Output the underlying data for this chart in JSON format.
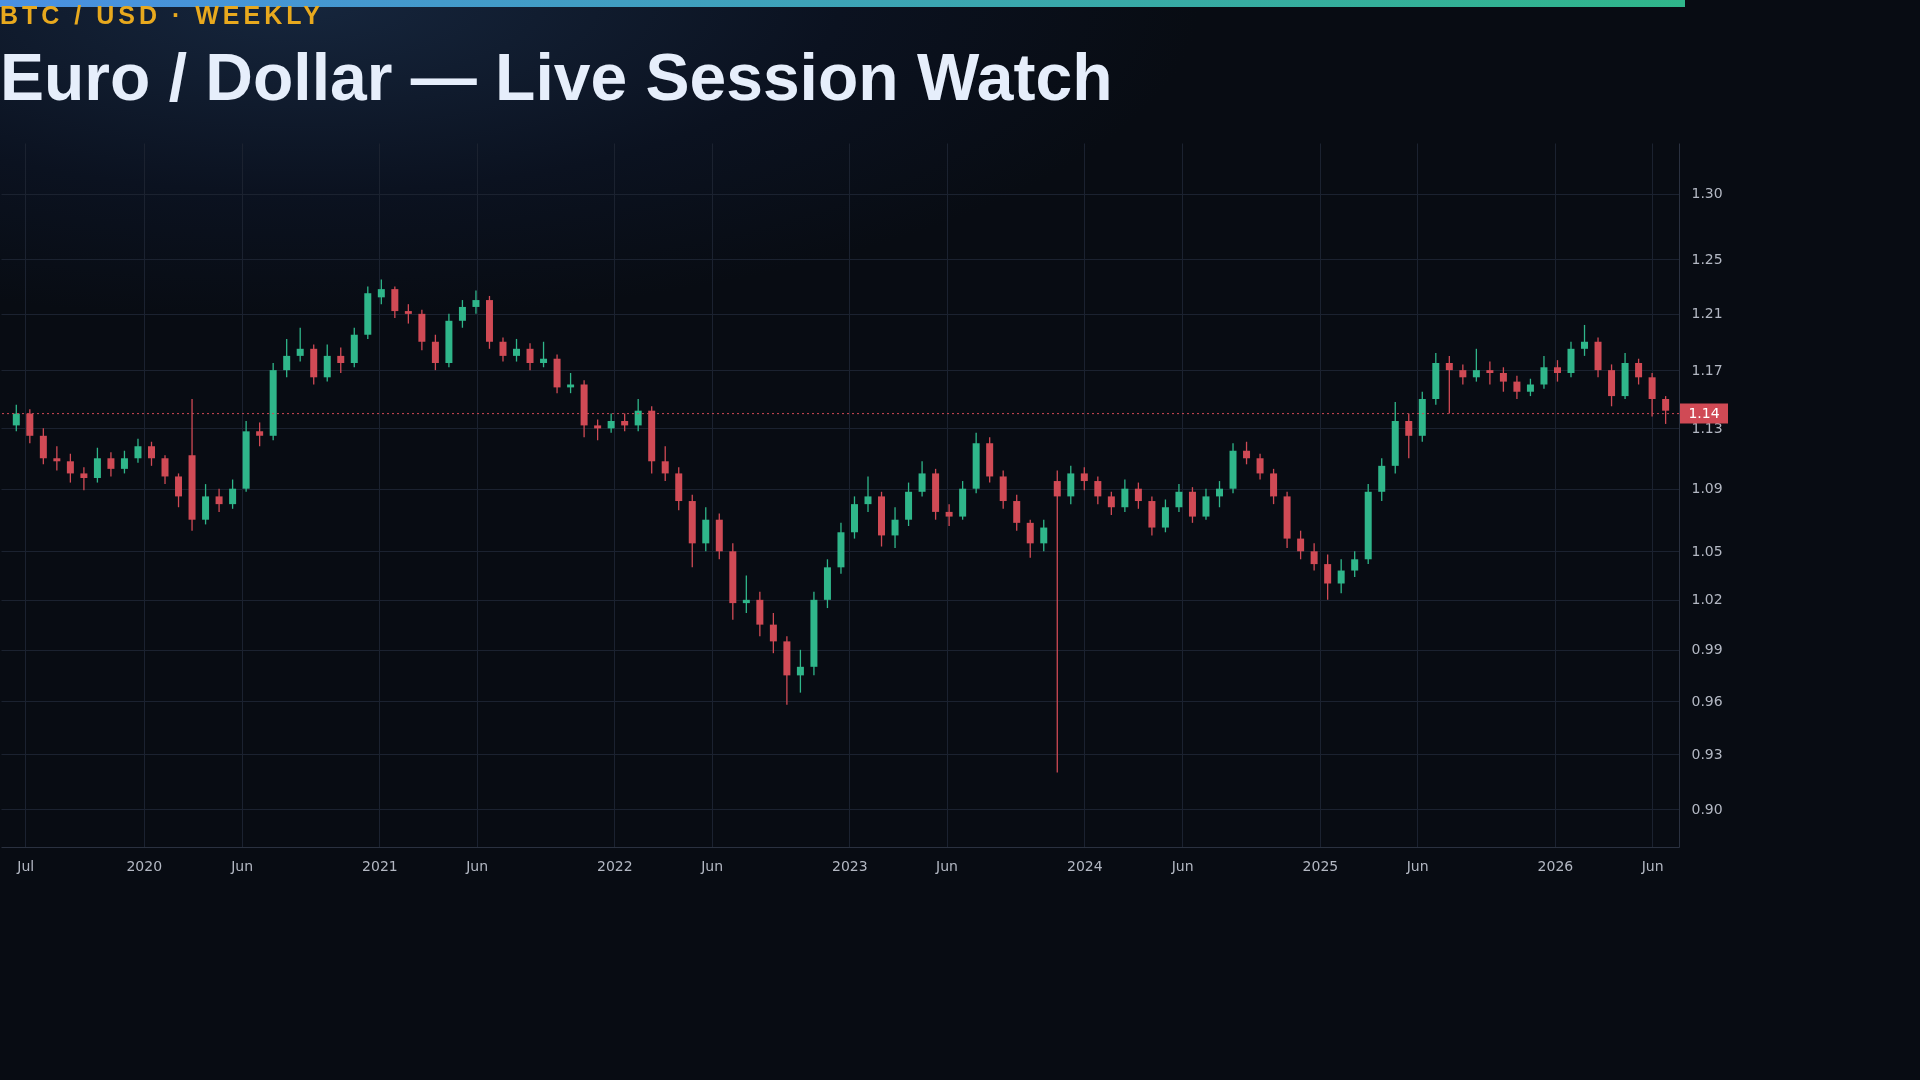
{
  "chart_data": {
    "type": "candlestick",
    "title": "Euro / Dollar — Live Session Watch",
    "subtitle": "BTC / USD · WEEKLY",
    "x": [
      "2019-06-17",
      "2019-07-08",
      "2019-07-29",
      "2019-08-19",
      "2019-09-09",
      "2019-09-30",
      "2019-10-21",
      "2019-11-11",
      "2019-12-02",
      "2019-12-23",
      "2020-01-13",
      "2020-02-03",
      "2020-02-24",
      "2020-03-16",
      "2020-04-06",
      "2020-04-27",
      "2020-05-18",
      "2020-06-08",
      "2020-06-29",
      "2020-07-20",
      "2020-08-10",
      "2020-08-31",
      "2020-09-21",
      "2020-10-12",
      "2020-11-02",
      "2020-11-23",
      "2020-12-14",
      "2021-01-04",
      "2021-01-25",
      "2021-02-15",
      "2021-03-08",
      "2021-03-29",
      "2021-04-19",
      "2021-05-10",
      "2021-05-31",
      "2021-06-21",
      "2021-07-12",
      "2021-08-02",
      "2021-08-23",
      "2021-09-13",
      "2021-10-04",
      "2021-10-25",
      "2021-11-15",
      "2021-12-06",
      "2021-12-27",
      "2022-01-17",
      "2022-02-07",
      "2022-02-28",
      "2022-03-21",
      "2022-04-11",
      "2022-05-02",
      "2022-05-23",
      "2022-06-13",
      "2022-07-04",
      "2022-07-25",
      "2022-08-15",
      "2022-09-05",
      "2022-09-26",
      "2022-10-17",
      "2022-11-07",
      "2022-11-28",
      "2022-12-19",
      "2023-01-09",
      "2023-01-30",
      "2023-02-20",
      "2023-03-13",
      "2023-04-03",
      "2023-04-24",
      "2023-05-15",
      "2023-06-05",
      "2023-06-26",
      "2023-07-17",
      "2023-08-07",
      "2023-08-28",
      "2023-09-18",
      "2023-10-09",
      "2023-10-30",
      "2023-11-20",
      "2023-12-11",
      "2024-01-01",
      "2024-01-22",
      "2024-02-12",
      "2024-03-04",
      "2024-03-25",
      "2024-04-15",
      "2024-05-06",
      "2024-05-27",
      "2024-06-17",
      "2024-07-08",
      "2024-07-29",
      "2024-08-19",
      "2024-09-09",
      "2024-09-30",
      "2024-10-21",
      "2024-11-11",
      "2024-12-02",
      "2024-12-23",
      "2025-01-13",
      "2025-02-03",
      "2025-02-24",
      "2025-03-17",
      "2025-04-07",
      "2025-04-28",
      "2025-05-19",
      "2025-06-09",
      "2025-06-30",
      "2025-07-21",
      "2025-08-11",
      "2025-09-01",
      "2025-09-22",
      "2025-10-13",
      "2025-11-03",
      "2025-11-24",
      "2025-12-15",
      "2026-01-05",
      "2026-01-26",
      "2026-02-16",
      "2026-03-09",
      "2026-03-30",
      "2026-04-20",
      "2026-05-11",
      "2026-06-01",
      "2026-06-22"
    ],
    "ohlc": [
      [
        1.132,
        1.146,
        1.128,
        1.14
      ],
      [
        1.14,
        1.143,
        1.12,
        1.125
      ],
      [
        1.125,
        1.13,
        1.106,
        1.11
      ],
      [
        1.11,
        1.118,
        1.102,
        1.108
      ],
      [
        1.108,
        1.113,
        1.094,
        1.1
      ],
      [
        1.1,
        1.104,
        1.089,
        1.097
      ],
      [
        1.097,
        1.117,
        1.094,
        1.11
      ],
      [
        1.11,
        1.114,
        1.098,
        1.103
      ],
      [
        1.103,
        1.115,
        1.1,
        1.11
      ],
      [
        1.11,
        1.123,
        1.107,
        1.118
      ],
      [
        1.118,
        1.121,
        1.105,
        1.11
      ],
      [
        1.11,
        1.112,
        1.093,
        1.098
      ],
      [
        1.098,
        1.1,
        1.078,
        1.085
      ],
      [
        1.112,
        1.15,
        1.063,
        1.07
      ],
      [
        1.07,
        1.093,
        1.067,
        1.085
      ],
      [
        1.085,
        1.09,
        1.075,
        1.08
      ],
      [
        1.08,
        1.096,
        1.077,
        1.09
      ],
      [
        1.09,
        1.135,
        1.088,
        1.128
      ],
      [
        1.128,
        1.134,
        1.118,
        1.125
      ],
      [
        1.125,
        1.175,
        1.122,
        1.17
      ],
      [
        1.17,
        1.192,
        1.165,
        1.18
      ],
      [
        1.18,
        1.2,
        1.176,
        1.185
      ],
      [
        1.185,
        1.188,
        1.16,
        1.165
      ],
      [
        1.165,
        1.188,
        1.162,
        1.18
      ],
      [
        1.18,
        1.186,
        1.168,
        1.175
      ],
      [
        1.175,
        1.2,
        1.172,
        1.195
      ],
      [
        1.195,
        1.23,
        1.192,
        1.225
      ],
      [
        1.222,
        1.235,
        1.217,
        1.228
      ],
      [
        1.228,
        1.23,
        1.207,
        1.212
      ],
      [
        1.212,
        1.217,
        1.203,
        1.21
      ],
      [
        1.21,
        1.213,
        1.184,
        1.19
      ],
      [
        1.19,
        1.195,
        1.17,
        1.175
      ],
      [
        1.175,
        1.21,
        1.172,
        1.205
      ],
      [
        1.205,
        1.22,
        1.2,
        1.215
      ],
      [
        1.215,
        1.227,
        1.21,
        1.22
      ],
      [
        1.22,
        1.223,
        1.185,
        1.19
      ],
      [
        1.19,
        1.193,
        1.176,
        1.18
      ],
      [
        1.18,
        1.192,
        1.176,
        1.185
      ],
      [
        1.185,
        1.189,
        1.17,
        1.175
      ],
      [
        1.175,
        1.19,
        1.172,
        1.178
      ],
      [
        1.178,
        1.181,
        1.154,
        1.158
      ],
      [
        1.158,
        1.168,
        1.154,
        1.16
      ],
      [
        1.16,
        1.163,
        1.124,
        1.132
      ],
      [
        1.132,
        1.136,
        1.122,
        1.13
      ],
      [
        1.13,
        1.14,
        1.127,
        1.135
      ],
      [
        1.135,
        1.14,
        1.128,
        1.132
      ],
      [
        1.132,
        1.15,
        1.128,
        1.142
      ],
      [
        1.142,
        1.145,
        1.1,
        1.108
      ],
      [
        1.108,
        1.118,
        1.095,
        1.1
      ],
      [
        1.1,
        1.104,
        1.076,
        1.082
      ],
      [
        1.082,
        1.086,
        1.04,
        1.055
      ],
      [
        1.055,
        1.078,
        1.05,
        1.07
      ],
      [
        1.07,
        1.074,
        1.045,
        1.05
      ],
      [
        1.05,
        1.055,
        1.008,
        1.018
      ],
      [
        1.018,
        1.035,
        1.012,
        1.02
      ],
      [
        1.02,
        1.025,
        0.998,
        1.005
      ],
      [
        1.005,
        1.012,
        0.988,
        0.995
      ],
      [
        0.995,
        0.998,
        0.958,
        0.975
      ],
      [
        0.975,
        0.99,
        0.965,
        0.98
      ],
      [
        0.98,
        1.025,
        0.975,
        1.02
      ],
      [
        1.02,
        1.045,
        1.015,
        1.04
      ],
      [
        1.04,
        1.068,
        1.036,
        1.062
      ],
      [
        1.062,
        1.085,
        1.058,
        1.08
      ],
      [
        1.08,
        1.098,
        1.075,
        1.085
      ],
      [
        1.085,
        1.088,
        1.053,
        1.06
      ],
      [
        1.06,
        1.078,
        1.052,
        1.07
      ],
      [
        1.07,
        1.094,
        1.066,
        1.088
      ],
      [
        1.088,
        1.108,
        1.085,
        1.1
      ],
      [
        1.1,
        1.103,
        1.07,
        1.075
      ],
      [
        1.075,
        1.08,
        1.066,
        1.072
      ],
      [
        1.072,
        1.095,
        1.07,
        1.09
      ],
      [
        1.09,
        1.127,
        1.087,
        1.12
      ],
      [
        1.12,
        1.124,
        1.094,
        1.098
      ],
      [
        1.098,
        1.102,
        1.077,
        1.082
      ],
      [
        1.082,
        1.086,
        1.063,
        1.068
      ],
      [
        1.068,
        1.07,
        1.046,
        1.055
      ],
      [
        1.055,
        1.07,
        1.05,
        1.065
      ],
      [
        1.095,
        1.102,
        0.92,
        1.085
      ],
      [
        1.085,
        1.105,
        1.08,
        1.1
      ],
      [
        1.1,
        1.104,
        1.089,
        1.095
      ],
      [
        1.095,
        1.098,
        1.08,
        1.085
      ],
      [
        1.085,
        1.088,
        1.073,
        1.078
      ],
      [
        1.078,
        1.096,
        1.075,
        1.09
      ],
      [
        1.09,
        1.094,
        1.077,
        1.082
      ],
      [
        1.082,
        1.085,
        1.06,
        1.065
      ],
      [
        1.065,
        1.083,
        1.062,
        1.078
      ],
      [
        1.078,
        1.093,
        1.075,
        1.088
      ],
      [
        1.088,
        1.091,
        1.068,
        1.072
      ],
      [
        1.072,
        1.09,
        1.07,
        1.085
      ],
      [
        1.085,
        1.095,
        1.078,
        1.09
      ],
      [
        1.09,
        1.12,
        1.087,
        1.115
      ],
      [
        1.115,
        1.121,
        1.106,
        1.11
      ],
      [
        1.11,
        1.113,
        1.096,
        1.1
      ],
      [
        1.1,
        1.103,
        1.08,
        1.085
      ],
      [
        1.085,
        1.088,
        1.052,
        1.058
      ],
      [
        1.058,
        1.063,
        1.045,
        1.05
      ],
      [
        1.05,
        1.055,
        1.038,
        1.042
      ],
      [
        1.042,
        1.048,
        1.02,
        1.03
      ],
      [
        1.03,
        1.045,
        1.024,
        1.038
      ],
      [
        1.038,
        1.05,
        1.034,
        1.045
      ],
      [
        1.045,
        1.093,
        1.042,
        1.088
      ],
      [
        1.088,
        1.11,
        1.082,
        1.105
      ],
      [
        1.105,
        1.148,
        1.1,
        1.135
      ],
      [
        1.135,
        1.14,
        1.11,
        1.125
      ],
      [
        1.125,
        1.155,
        1.121,
        1.15
      ],
      [
        1.15,
        1.182,
        1.146,
        1.175
      ],
      [
        1.175,
        1.18,
        1.14,
        1.17
      ],
      [
        1.17,
        1.174,
        1.16,
        1.165
      ],
      [
        1.165,
        1.185,
        1.162,
        1.17
      ],
      [
        1.17,
        1.176,
        1.16,
        1.168
      ],
      [
        1.168,
        1.172,
        1.155,
        1.162
      ],
      [
        1.162,
        1.166,
        1.15,
        1.155
      ],
      [
        1.155,
        1.164,
        1.152,
        1.16
      ],
      [
        1.16,
        1.18,
        1.157,
        1.172
      ],
      [
        1.172,
        1.177,
        1.162,
        1.168
      ],
      [
        1.168,
        1.19,
        1.165,
        1.185
      ],
      [
        1.185,
        1.202,
        1.18,
        1.19
      ],
      [
        1.19,
        1.193,
        1.165,
        1.17
      ],
      [
        1.17,
        1.174,
        1.145,
        1.152
      ],
      [
        1.152,
        1.182,
        1.15,
        1.175
      ],
      [
        1.175,
        1.178,
        1.16,
        1.165
      ],
      [
        1.165,
        1.168,
        1.138,
        1.15
      ],
      [
        1.15,
        1.152,
        1.133,
        1.142
      ]
    ],
    "colors": [
      "#2fb68a",
      "#d04a55",
      "#d04a55",
      "#d04a55",
      "#d04a55",
      "#d04a55",
      "#2fb68a",
      "#d04a55",
      "#2fb68a",
      "#2fb68a",
      "#d04a55",
      "#d04a55",
      "#d04a55",
      "#d04a55",
      "#2fb68a",
      "#d04a55",
      "#2fb68a",
      "#2fb68a",
      "#d04a55",
      "#2fb68a",
      "#2fb68a",
      "#2fb68a",
      "#d04a55",
      "#2fb68a",
      "#d04a55",
      "#2fb68a",
      "#2fb68a",
      "#2fb68a",
      "#d04a55",
      "#d04a55",
      "#d04a55",
      "#d04a55",
      "#2fb68a",
      "#2fb68a",
      "#2fb68a",
      "#d04a55",
      "#d04a55",
      "#2fb68a",
      "#d04a55",
      "#2fb68a",
      "#d04a55",
      "#2fb68a",
      "#d04a55",
      "#d04a55",
      "#2fb68a",
      "#d04a55",
      "#2fb68a",
      "#d04a55",
      "#d04a55",
      "#d04a55",
      "#d04a55",
      "#2fb68a",
      "#d04a55",
      "#d04a55",
      "#2fb68a",
      "#d04a55",
      "#d04a55",
      "#d04a55",
      "#2fb68a",
      "#2fb68a",
      "#2fb68a",
      "#2fb68a",
      "#2fb68a",
      "#2fb68a",
      "#d04a55",
      "#2fb68a",
      "#2fb68a",
      "#2fb68a",
      "#d04a55",
      "#d04a55",
      "#2fb68a",
      "#2fb68a",
      "#d04a55",
      "#d04a55",
      "#d04a55",
      "#d04a55",
      "#2fb68a",
      "#d04a55",
      "#2fb68a",
      "#d04a55",
      "#d04a55",
      "#d04a55",
      "#2fb68a",
      "#d04a55",
      "#d04a55",
      "#2fb68a",
      "#2fb68a",
      "#d04a55",
      "#2fb68a",
      "#2fb68a",
      "#2fb68a",
      "#d04a55",
      "#d04a55",
      "#d04a55",
      "#d04a55",
      "#d04a55",
      "#d04a55",
      "#d04a55",
      "#2fb68a",
      "#2fb68a",
      "#2fb68a",
      "#2fb68a",
      "#2fb68a",
      "#d04a55",
      "#2fb68a",
      "#2fb68a",
      "#d04a55",
      "#d04a55",
      "#2fb68a",
      "#d04a55",
      "#d04a55",
      "#d04a55",
      "#2fb68a",
      "#2fb68a",
      "#d04a55",
      "#2fb68a",
      "#2fb68a",
      "#d04a55",
      "#d04a55",
      "#2fb68a",
      "#d04a55",
      "#d04a55",
      "#d04a55"
    ],
    "xlim": [
      "2019-06-01",
      "2026-07-05"
    ],
    "xticks": [
      {
        "value": "2019-07-01",
        "label": "Jul"
      },
      {
        "value": "2020-01-01",
        "label": "2020"
      },
      {
        "value": "2020-06-01",
        "label": "Jun"
      },
      {
        "value": "2021-01-01",
        "label": "2021"
      },
      {
        "value": "2021-06-01",
        "label": "Jun"
      },
      {
        "value": "2022-01-01",
        "label": "2022"
      },
      {
        "value": "2022-06-01",
        "label": "Jun"
      },
      {
        "value": "2023-01-01",
        "label": "2023"
      },
      {
        "value": "2023-06-01",
        "label": "Jun"
      },
      {
        "value": "2024-01-01",
        "label": "2024"
      },
      {
        "value": "2024-06-01",
        "label": "Jun"
      },
      {
        "value": "2025-01-01",
        "label": "2025"
      },
      {
        "value": "2025-06-01",
        "label": "Jun"
      },
      {
        "value": "2026-01-01",
        "label": "2026"
      },
      {
        "value": "2026-06-01",
        "label": "Jun"
      }
    ],
    "ylim": [
      0.88,
      1.34
    ],
    "yticks": [
      {
        "value": 0.9,
        "label": "0.90"
      },
      0.93,
      0.96,
      0.99,
      1.02,
      1.05,
      1.09,
      1.13,
      1.17,
      1.21,
      1.25,
      {
        "value": 1.3,
        "label": "1.30"
      }
    ],
    "log": "y",
    "grid": true,
    "ref_lines": [
      {
        "axis": "y",
        "value": 1.14,
        "label": "1.14",
        "color": "#d04a55",
        "line_style": "dotted"
      }
    ]
  }
}
